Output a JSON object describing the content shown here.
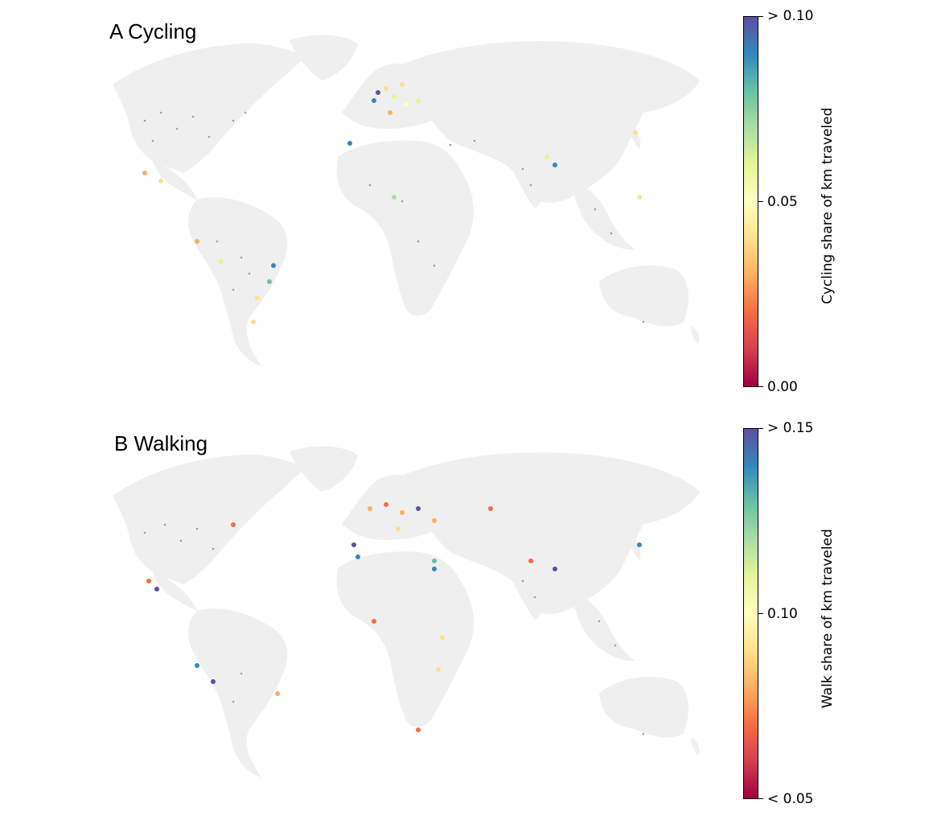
{
  "panels": [
    {
      "title": "A  Cycling",
      "colorbar": {
        "label": "Cycling share of km traveled",
        "ticks": [
          "> 0.10",
          "0.05",
          "0.00"
        ]
      }
    },
    {
      "title": "B  Walking",
      "colorbar": {
        "label": "Walk share of km traveled",
        "ticks": [
          "> 0.15",
          "0.10",
          "< 0.05"
        ]
      }
    }
  ],
  "colors": {
    "land": "#eeeeee",
    "no_data_dots": "#9e9e9e",
    "colormap": [
      "#5e4fa2",
      "#3288bd",
      "#66c2a5",
      "#abdda4",
      "#e6f598",
      "#ffffbf",
      "#fee08b",
      "#fdae61",
      "#f46d43",
      "#d53e4f",
      "#9e0142"
    ]
  }
}
